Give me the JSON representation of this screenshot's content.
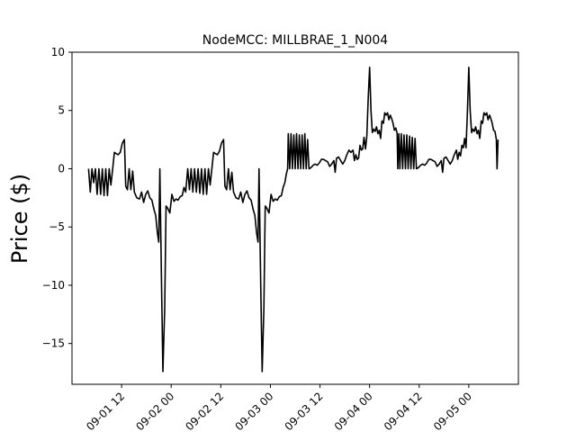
{
  "chart_data": {
    "type": "line",
    "title": "NodeMCC: MILLBRAE_1_N004",
    "xlabel": "",
    "ylabel": "Price ($)",
    "ylim": [
      -18.5,
      10
    ],
    "xlim": [
      "2018-09-01 00:00",
      "2018-09-05 12:00"
    ],
    "grid": false,
    "line_color": "#000000",
    "yticks": [
      10,
      5,
      0,
      -5,
      -10,
      -15
    ],
    "ytick_labels": [
      "10",
      "5",
      "0",
      "−5",
      "−10",
      "−15"
    ],
    "xticks": [
      {
        "t": "2018-09-01 12:00",
        "label": "09-01 12"
      },
      {
        "t": "2018-09-02 00:00",
        "label": "09-02 00"
      },
      {
        "t": "2018-09-02 12:00",
        "label": "09-02 12"
      },
      {
        "t": "2018-09-03 00:00",
        "label": "09-03 00"
      },
      {
        "t": "2018-09-03 12:00",
        "label": "09-03 12"
      },
      {
        "t": "2018-09-04 00:00",
        "label": "09-04 00"
      },
      {
        "t": "2018-09-04 12:00",
        "label": "09-04 12"
      },
      {
        "t": "2018-09-05 00:00",
        "label": "09-05 00"
      }
    ],
    "series": [
      {
        "points": [
          [
            "2018-09-01 04:00",
            0
          ],
          [
            "2018-09-01 04:25",
            -2
          ],
          [
            "2018-09-01 04:50",
            0
          ],
          [
            "2018-09-01 05:15",
            -1.2
          ],
          [
            "2018-09-01 05:40",
            0
          ],
          [
            "2018-09-01 06:05",
            -2.2
          ],
          [
            "2018-09-01 06:30",
            0
          ],
          [
            "2018-09-01 06:55",
            -2.2
          ],
          [
            "2018-09-01 07:20",
            0
          ],
          [
            "2018-09-01 07:45",
            -2.3
          ],
          [
            "2018-09-01 08:10",
            0
          ],
          [
            "2018-09-01 08:35",
            -2.3
          ],
          [
            "2018-09-01 09:00",
            0
          ],
          [
            "2018-09-01 09:25",
            -1.4
          ],
          [
            "2018-09-01 09:50",
            0
          ],
          [
            "2018-09-01 10:15",
            1.4
          ],
          [
            "2018-09-01 10:40",
            1.3
          ],
          [
            "2018-09-01 11:10",
            1.2
          ],
          [
            "2018-09-01 11:40",
            1.4
          ],
          [
            "2018-09-01 12:10",
            2.2
          ],
          [
            "2018-09-01 12:40",
            2.5
          ],
          [
            "2018-09-01 13:00",
            -1.5
          ],
          [
            "2018-09-01 13:25",
            -1.8
          ],
          [
            "2018-09-01 13:50",
            0
          ],
          [
            "2018-09-01 14:15",
            -1.8
          ],
          [
            "2018-09-01 14:40",
            -0.2
          ],
          [
            "2018-09-01 15:05",
            -2
          ],
          [
            "2018-09-01 15:40",
            -2.5
          ],
          [
            "2018-09-01 16:20",
            -2.6
          ],
          [
            "2018-09-01 16:50",
            -2
          ],
          [
            "2018-09-01 17:20",
            -2.9
          ],
          [
            "2018-09-01 17:50",
            -2.2
          ],
          [
            "2018-09-01 18:20",
            -1.9
          ],
          [
            "2018-09-01 18:50",
            -2.5
          ],
          [
            "2018-09-01 19:20",
            -2.7
          ],
          [
            "2018-09-01 19:50",
            -3.5
          ],
          [
            "2018-09-01 20:15",
            -4
          ],
          [
            "2018-09-01 20:40",
            -5.5
          ],
          [
            "2018-09-01 21:00",
            -6.3
          ],
          [
            "2018-09-01 21:15",
            0
          ],
          [
            "2018-09-01 21:40",
            -10
          ],
          [
            "2018-09-01 22:00",
            -17.4
          ],
          [
            "2018-09-01 22:25",
            -12
          ],
          [
            "2018-09-01 22:45",
            -3.2
          ],
          [
            "2018-09-01 23:10",
            -3.4
          ],
          [
            "2018-09-01 23:40",
            -3.8
          ],
          [
            "2018-09-02 00:10",
            -2.2
          ],
          [
            "2018-09-02 00:40",
            -2.8
          ],
          [
            "2018-09-02 01:10",
            -2.6
          ],
          [
            "2018-09-02 01:40",
            -2.7
          ],
          [
            "2018-09-02 02:10",
            -2.4
          ],
          [
            "2018-09-02 02:40",
            -2.3
          ],
          [
            "2018-09-02 03:05",
            -1.6
          ],
          [
            "2018-09-02 03:30",
            -2
          ],
          [
            "2018-09-02 04:00",
            0
          ],
          [
            "2018-09-02 04:25",
            -1.8
          ],
          [
            "2018-09-02 04:50",
            0
          ],
          [
            "2018-09-02 05:15",
            -2
          ],
          [
            "2018-09-02 05:40",
            0
          ],
          [
            "2018-09-02 06:05",
            -2
          ],
          [
            "2018-09-02 06:30",
            0
          ],
          [
            "2018-09-02 06:55",
            -2.1
          ],
          [
            "2018-09-02 07:20",
            0
          ],
          [
            "2018-09-02 07:45",
            -2.2
          ],
          [
            "2018-09-02 08:10",
            0
          ],
          [
            "2018-09-02 08:35",
            -2.2
          ],
          [
            "2018-09-02 09:00",
            0
          ],
          [
            "2018-09-02 09:25",
            -1.4
          ],
          [
            "2018-09-02 09:50",
            0
          ],
          [
            "2018-09-02 10:15",
            1.4
          ],
          [
            "2018-09-02 10:40",
            1.3
          ],
          [
            "2018-09-02 11:10",
            1.2
          ],
          [
            "2018-09-02 11:40",
            1.5
          ],
          [
            "2018-09-02 12:10",
            2.2
          ],
          [
            "2018-09-02 12:40",
            2.5
          ],
          [
            "2018-09-02 13:00",
            -1.5
          ],
          [
            "2018-09-02 13:25",
            -1.8
          ],
          [
            "2018-09-02 13:50",
            0
          ],
          [
            "2018-09-02 14:15",
            -1.8
          ],
          [
            "2018-09-02 14:40",
            -0.3
          ],
          [
            "2018-09-02 15:05",
            -2
          ],
          [
            "2018-09-02 15:40",
            -2.5
          ],
          [
            "2018-09-02 16:20",
            -2.6
          ],
          [
            "2018-09-02 16:50",
            -2
          ],
          [
            "2018-09-02 17:20",
            -2.9
          ],
          [
            "2018-09-02 17:50",
            -2.2
          ],
          [
            "2018-09-02 18:20",
            -1.9
          ],
          [
            "2018-09-02 18:50",
            -2.5
          ],
          [
            "2018-09-02 19:20",
            -2.7
          ],
          [
            "2018-09-02 19:50",
            -3.5
          ],
          [
            "2018-09-02 20:15",
            -4
          ],
          [
            "2018-09-02 20:40",
            -5.5
          ],
          [
            "2018-09-02 21:00",
            -6.3
          ],
          [
            "2018-09-02 21:15",
            0
          ],
          [
            "2018-09-02 21:40",
            -10
          ],
          [
            "2018-09-02 22:00",
            -17.4
          ],
          [
            "2018-09-02 22:25",
            -12
          ],
          [
            "2018-09-02 22:45",
            -3.2
          ],
          [
            "2018-09-02 23:10",
            -3.4
          ],
          [
            "2018-09-02 23:40",
            -3.8
          ],
          [
            "2018-09-03 00:10",
            -2.2
          ],
          [
            "2018-09-03 00:40",
            -2.8
          ],
          [
            "2018-09-03 01:10",
            -2.6
          ],
          [
            "2018-09-03 01:40",
            -2.7
          ],
          [
            "2018-09-03 02:10",
            -2.4
          ],
          [
            "2018-09-03 02:40",
            -2.3
          ],
          [
            "2018-09-03 03:05",
            -1.6
          ],
          [
            "2018-09-03 03:30",
            -1.2
          ],
          [
            "2018-09-03 03:50",
            -0.5
          ],
          [
            "2018-09-03 04:10",
            0
          ],
          [
            "2018-09-03 04:20",
            3
          ],
          [
            "2018-09-03 04:40",
            0
          ],
          [
            "2018-09-03 05:00",
            3
          ],
          [
            "2018-09-03 05:20",
            0
          ],
          [
            "2018-09-03 05:40",
            2.9
          ],
          [
            "2018-09-03 06:00",
            0
          ],
          [
            "2018-09-03 06:20",
            3
          ],
          [
            "2018-09-03 06:40",
            0
          ],
          [
            "2018-09-03 07:00",
            2.9
          ],
          [
            "2018-09-03 07:20",
            0
          ],
          [
            "2018-09-03 07:40",
            2.9
          ],
          [
            "2018-09-03 08:00",
            0
          ],
          [
            "2018-09-03 08:20",
            3
          ],
          [
            "2018-09-03 08:40",
            0
          ],
          [
            "2018-09-03 09:00",
            2.5
          ],
          [
            "2018-09-03 09:20",
            0
          ],
          [
            "2018-09-03 09:50",
            0.1
          ],
          [
            "2018-09-03 10:20",
            0.3
          ],
          [
            "2018-09-03 10:50",
            0.4
          ],
          [
            "2018-09-03 11:20",
            0.3
          ],
          [
            "2018-09-03 11:50",
            0.5
          ],
          [
            "2018-09-03 12:20",
            0.8
          ],
          [
            "2018-09-03 12:50",
            0.8
          ],
          [
            "2018-09-03 13:20",
            0.7
          ],
          [
            "2018-09-03 13:50",
            0.6
          ],
          [
            "2018-09-03 14:20",
            0.2
          ],
          [
            "2018-09-03 14:50",
            0.4
          ],
          [
            "2018-09-03 15:20",
            0.7
          ],
          [
            "2018-09-03 15:40",
            -0.3
          ],
          [
            "2018-09-03 16:00",
            0.9
          ],
          [
            "2018-09-03 16:30",
            1
          ],
          [
            "2018-09-03 17:00",
            0.7
          ],
          [
            "2018-09-03 17:30",
            0.4
          ],
          [
            "2018-09-03 18:00",
            0.7
          ],
          [
            "2018-09-03 18:30",
            1.2
          ],
          [
            "2018-09-03 19:00",
            1.6
          ],
          [
            "2018-09-03 19:30",
            1.4
          ],
          [
            "2018-09-03 20:00",
            1.6
          ],
          [
            "2018-09-03 20:20",
            0.7
          ],
          [
            "2018-09-03 20:40",
            1.2
          ],
          [
            "2018-09-03 21:00",
            0.8
          ],
          [
            "2018-09-03 21:20",
            0.9
          ],
          [
            "2018-09-03 21:40",
            2
          ],
          [
            "2018-09-03 22:00",
            1.6
          ],
          [
            "2018-09-03 22:20",
            1.7
          ],
          [
            "2018-09-03 22:40",
            2.7
          ],
          [
            "2018-09-03 23:00",
            1.7
          ],
          [
            "2018-09-03 23:20",
            2.8
          ],
          [
            "2018-09-03 23:40",
            6
          ],
          [
            "2018-09-04 00:00",
            8.7
          ],
          [
            "2018-09-04 00:20",
            5
          ],
          [
            "2018-09-04 00:40",
            3.1
          ],
          [
            "2018-09-04 01:00",
            3.4
          ],
          [
            "2018-09-04 01:20",
            3.2
          ],
          [
            "2018-09-04 01:40",
            3.6
          ],
          [
            "2018-09-04 02:00",
            3
          ],
          [
            "2018-09-04 02:20",
            3.3
          ],
          [
            "2018-09-04 02:40",
            2.6
          ],
          [
            "2018-09-04 03:00",
            4.1
          ],
          [
            "2018-09-04 03:20",
            3.9
          ],
          [
            "2018-09-04 03:40",
            4.8
          ],
          [
            "2018-09-04 04:00",
            4.6
          ],
          [
            "2018-09-04 04:20",
            4.8
          ],
          [
            "2018-09-04 04:40",
            4.2
          ],
          [
            "2018-09-04 05:00",
            4.6
          ],
          [
            "2018-09-04 05:20",
            4.3
          ],
          [
            "2018-09-04 05:40",
            3.9
          ],
          [
            "2018-09-04 06:00",
            3.3
          ],
          [
            "2018-09-04 06:20",
            3.5
          ],
          [
            "2018-09-04 06:40",
            3
          ],
          [
            "2018-09-04 06:50",
            0
          ],
          [
            "2018-09-04 07:05",
            3
          ],
          [
            "2018-09-04 07:20",
            0
          ],
          [
            "2018-09-04 07:40",
            3
          ],
          [
            "2018-09-04 08:00",
            0
          ],
          [
            "2018-09-04 08:20",
            2.9
          ],
          [
            "2018-09-04 08:40",
            0
          ],
          [
            "2018-09-04 09:00",
            2.9
          ],
          [
            "2018-09-04 09:20",
            0
          ],
          [
            "2018-09-04 09:40",
            2.8
          ],
          [
            "2018-09-04 10:00",
            0
          ],
          [
            "2018-09-04 10:20",
            2.7
          ],
          [
            "2018-09-04 10:40",
            0
          ],
          [
            "2018-09-04 11:00",
            2.6
          ],
          [
            "2018-09-04 11:20",
            0
          ],
          [
            "2018-09-04 11:50",
            0.1
          ],
          [
            "2018-09-04 12:20",
            0.3
          ],
          [
            "2018-09-04 12:50",
            0.4
          ],
          [
            "2018-09-04 13:20",
            0.3
          ],
          [
            "2018-09-04 13:50",
            0.5
          ],
          [
            "2018-09-04 14:20",
            0.8
          ],
          [
            "2018-09-04 14:50",
            0.8
          ],
          [
            "2018-09-04 15:20",
            0.7
          ],
          [
            "2018-09-04 15:50",
            0.6
          ],
          [
            "2018-09-04 16:20",
            0.2
          ],
          [
            "2018-09-04 16:50",
            0.4
          ],
          [
            "2018-09-04 17:20",
            0.7
          ],
          [
            "2018-09-04 17:40",
            -0.3
          ],
          [
            "2018-09-04 18:00",
            0.9
          ],
          [
            "2018-09-04 18:30",
            1
          ],
          [
            "2018-09-04 19:00",
            0.7
          ],
          [
            "2018-09-04 19:30",
            0.4
          ],
          [
            "2018-09-04 20:00",
            0.7
          ],
          [
            "2018-09-04 20:30",
            1.2
          ],
          [
            "2018-09-04 21:00",
            1.6
          ],
          [
            "2018-09-04 21:20",
            0.8
          ],
          [
            "2018-09-04 21:40",
            1.4
          ],
          [
            "2018-09-04 22:00",
            1.1
          ],
          [
            "2018-09-04 22:20",
            2
          ],
          [
            "2018-09-04 22:40",
            1.8
          ],
          [
            "2018-09-04 23:00",
            2.6
          ],
          [
            "2018-09-04 23:20",
            1.8
          ],
          [
            "2018-09-04 23:40",
            5
          ],
          [
            "2018-09-05 00:00",
            8.7
          ],
          [
            "2018-09-05 00:20",
            5
          ],
          [
            "2018-09-05 00:40",
            3.1
          ],
          [
            "2018-09-05 01:00",
            3.4
          ],
          [
            "2018-09-05 01:20",
            3.2
          ],
          [
            "2018-09-05 01:40",
            3.6
          ],
          [
            "2018-09-05 02:00",
            3
          ],
          [
            "2018-09-05 02:20",
            3.3
          ],
          [
            "2018-09-05 02:40",
            2.6
          ],
          [
            "2018-09-05 03:00",
            4.1
          ],
          [
            "2018-09-05 03:20",
            3.9
          ],
          [
            "2018-09-05 03:40",
            4.8
          ],
          [
            "2018-09-05 04:00",
            4.6
          ],
          [
            "2018-09-05 04:20",
            4.8
          ],
          [
            "2018-09-05 04:40",
            4.2
          ],
          [
            "2018-09-05 05:00",
            4.6
          ],
          [
            "2018-09-05 05:20",
            4.3
          ],
          [
            "2018-09-05 05:40",
            3.9
          ],
          [
            "2018-09-05 06:00",
            3.3
          ],
          [
            "2018-09-05 06:20",
            3.2
          ],
          [
            "2018-09-05 06:40",
            2.5
          ],
          [
            "2018-09-05 06:50",
            0
          ],
          [
            "2018-09-05 07:05",
            2.5
          ]
        ]
      }
    ]
  }
}
